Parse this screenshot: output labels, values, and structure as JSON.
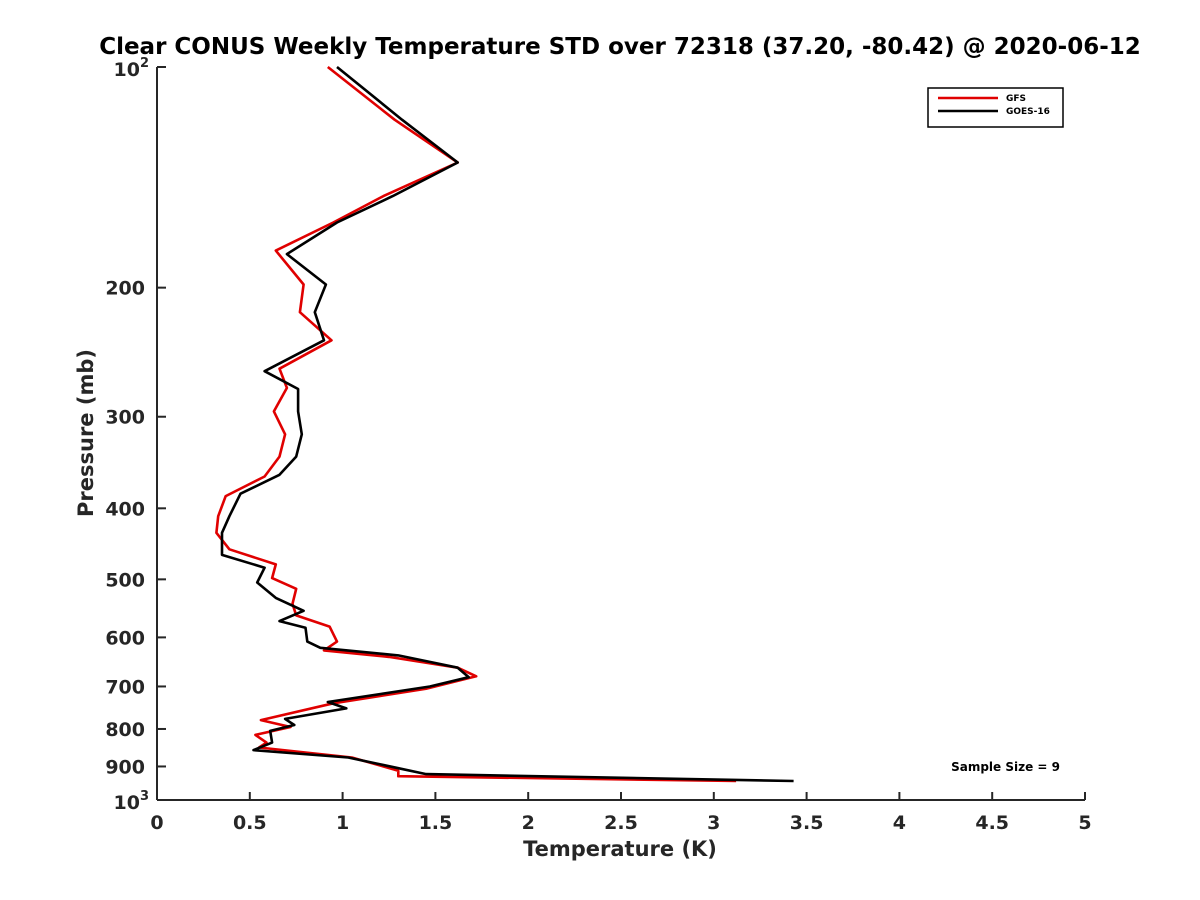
{
  "chart_data": {
    "type": "line",
    "title": "Clear CONUS Weekly Temperature STD over 72318 (37.20, -80.42) @ 2020-06-12",
    "xlabel": "Temperature (K)",
    "ylabel": "Pressure (mb)",
    "xlim": [
      0,
      5
    ],
    "ylim": [
      100,
      1000
    ],
    "y_scale": "log",
    "y_reversed": true,
    "x_ticks": [
      0,
      0.5,
      1,
      1.5,
      2,
      2.5,
      3,
      3.5,
      4,
      4.5,
      5
    ],
    "x_tick_labels": [
      "0",
      "0.5",
      "1",
      "1.5",
      "2",
      "2.5",
      "3",
      "3.5",
      "4",
      "4.5",
      "5"
    ],
    "y_ticks": [
      200,
      300,
      400,
      500,
      600,
      700,
      800,
      900
    ],
    "y_tick_labels": [
      "200",
      "300",
      "400",
      "500",
      "600",
      "700",
      "800",
      "900"
    ],
    "y_power_ticks": [
      {
        "value": 100,
        "base": "10",
        "exp": "2"
      },
      {
        "value": 1000,
        "base": "10",
        "exp": "3"
      }
    ],
    "grid": false,
    "legend_position": "top-right",
    "annotation": "Sample Size = 9",
    "series": [
      {
        "name": "GFS",
        "color": "#e00000",
        "points": [
          [
            0.92,
            100
          ],
          [
            1.28,
            118
          ],
          [
            1.62,
            135
          ],
          [
            1.22,
            150
          ],
          [
            0.95,
            163
          ],
          [
            0.64,
            178
          ],
          [
            0.79,
            198
          ],
          [
            0.77,
            216
          ],
          [
            0.94,
            236
          ],
          [
            0.66,
            258
          ],
          [
            0.7,
            274
          ],
          [
            0.63,
            295
          ],
          [
            0.69,
            317
          ],
          [
            0.66,
            340
          ],
          [
            0.58,
            362
          ],
          [
            0.37,
            385
          ],
          [
            0.33,
            410
          ],
          [
            0.32,
            432
          ],
          [
            0.39,
            455
          ],
          [
            0.64,
            477
          ],
          [
            0.62,
            498
          ],
          [
            0.75,
            515
          ],
          [
            0.73,
            540
          ],
          [
            0.75,
            560
          ],
          [
            0.93,
            580
          ],
          [
            0.97,
            608
          ],
          [
            0.9,
            625
          ],
          [
            1.25,
            638
          ],
          [
            1.62,
            660
          ],
          [
            1.72,
            678
          ],
          [
            1.45,
            705
          ],
          [
            0.95,
            738
          ],
          [
            0.56,
            778
          ],
          [
            0.72,
            795
          ],
          [
            0.53,
            815
          ],
          [
            0.59,
            835
          ],
          [
            0.55,
            848
          ],
          [
            1.05,
            875
          ],
          [
            1.3,
            912
          ],
          [
            1.3,
            928
          ],
          [
            3.12,
            942
          ]
        ]
      },
      {
        "name": "GOES-16",
        "color": "#000000",
        "points": [
          [
            0.97,
            100
          ],
          [
            1.32,
            118
          ],
          [
            1.62,
            135
          ],
          [
            1.27,
            150
          ],
          [
            0.97,
            163
          ],
          [
            0.7,
            180
          ],
          [
            0.91,
            198
          ],
          [
            0.85,
            216
          ],
          [
            0.9,
            236
          ],
          [
            0.58,
            260
          ],
          [
            0.76,
            275
          ],
          [
            0.76,
            295
          ],
          [
            0.78,
            317
          ],
          [
            0.75,
            340
          ],
          [
            0.66,
            360
          ],
          [
            0.45,
            382
          ],
          [
            0.39,
            410
          ],
          [
            0.35,
            432
          ],
          [
            0.35,
            463
          ],
          [
            0.58,
            482
          ],
          [
            0.54,
            505
          ],
          [
            0.64,
            530
          ],
          [
            0.79,
            552
          ],
          [
            0.66,
            570
          ],
          [
            0.8,
            582
          ],
          [
            0.81,
            608
          ],
          [
            0.88,
            620
          ],
          [
            1.3,
            635
          ],
          [
            1.62,
            660
          ],
          [
            1.68,
            680
          ],
          [
            1.47,
            700
          ],
          [
            0.92,
            735
          ],
          [
            1.02,
            750
          ],
          [
            0.69,
            775
          ],
          [
            0.74,
            790
          ],
          [
            0.61,
            805
          ],
          [
            0.62,
            835
          ],
          [
            0.52,
            855
          ],
          [
            1.03,
            875
          ],
          [
            1.3,
            905
          ],
          [
            1.45,
            922
          ],
          [
            3.43,
            942
          ]
        ]
      }
    ]
  }
}
